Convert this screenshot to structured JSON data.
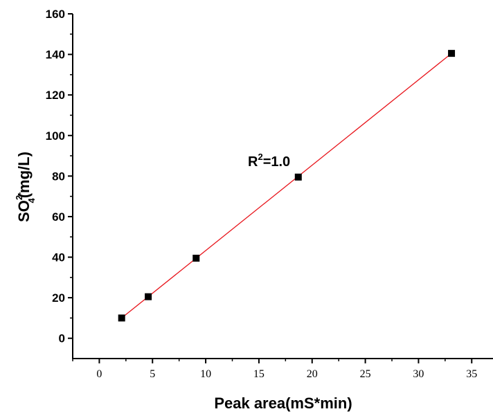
{
  "chart_data": {
    "type": "scatter",
    "x": [
      2.1,
      4.6,
      9.1,
      18.7,
      33.1
    ],
    "y": [
      10,
      20.5,
      39.5,
      79.5,
      140.5
    ],
    "fit_line": {
      "x": [
        2.1,
        33.1
      ],
      "y": [
        10,
        140.5
      ],
      "color": "#e8141b"
    },
    "marker_color": "#000000",
    "xlabel": "Peak area(mS*min)",
    "ylabel": {
      "base": "SO",
      "sub": "4",
      "sup": "2-",
      "unit": "(mg/L)"
    },
    "annotation": {
      "base": "R",
      "sup": "2",
      "rest": "=1.0"
    },
    "xlim": [
      -2.5,
      37
    ],
    "ylim": [
      -10,
      160
    ],
    "xticks": [
      "0",
      "5",
      "10",
      "15",
      "20",
      "25",
      "30",
      "35"
    ],
    "yticks": [
      "0",
      "20",
      "40",
      "60",
      "80",
      "100",
      "120",
      "140",
      "160"
    ],
    "grid": false
  }
}
